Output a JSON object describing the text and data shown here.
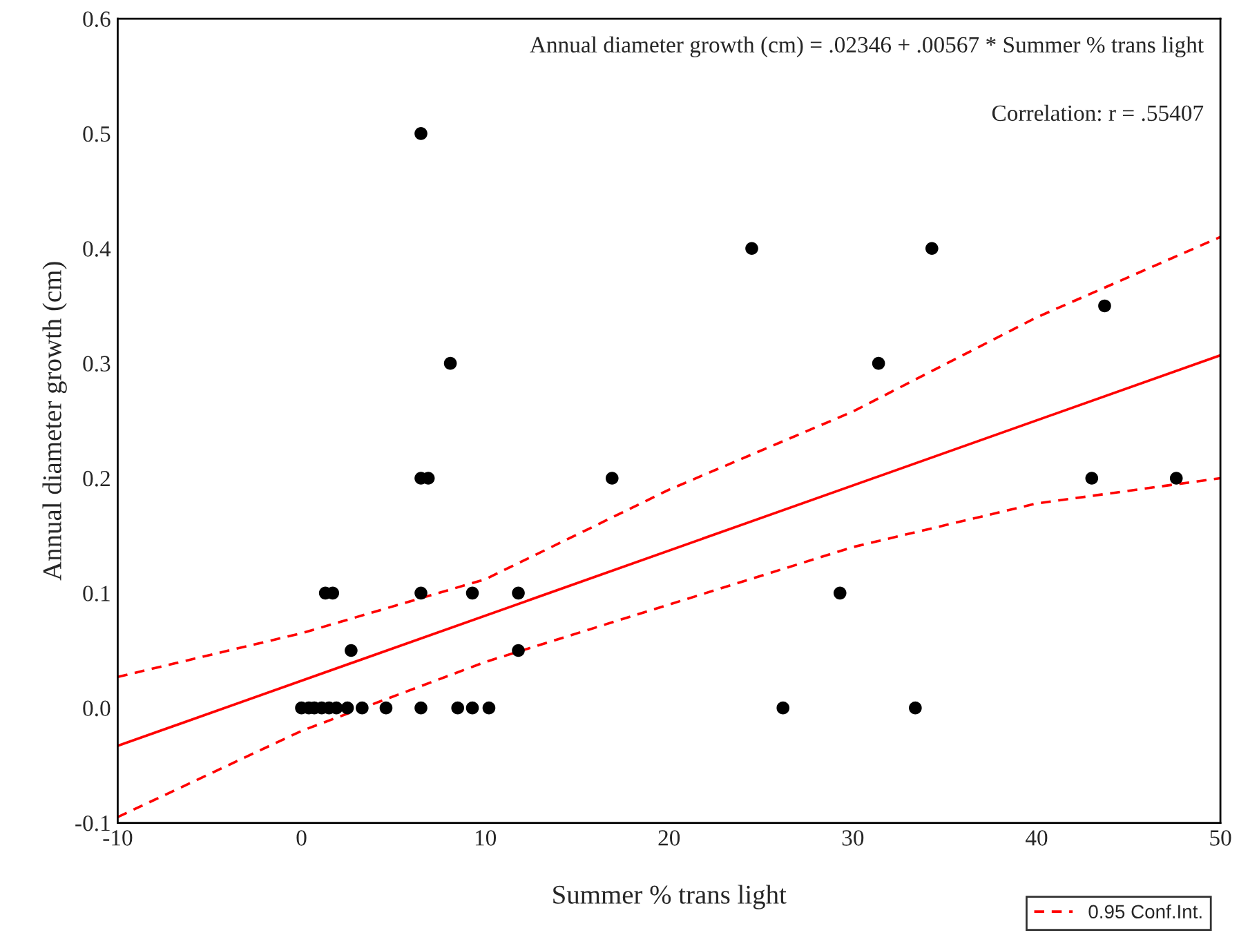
{
  "chart_data": {
    "type": "scatter",
    "xlabel": "Summer % trans light",
    "ylabel": "Annual diameter growth (cm)",
    "annotations": [
      "Annual diameter growth (cm) = .02346 + .00567 * Summer % trans light",
      "Correlation: r = .55407"
    ],
    "xlim": [
      -10,
      50
    ],
    "xticks": [
      -10,
      0,
      10,
      20,
      30,
      40,
      50
    ],
    "ylim": [
      -0.1,
      0.6
    ],
    "yticks": [
      {
        "value": -0.1,
        "label": "-0.1"
      },
      {
        "value": 0.0,
        "label": "0.0"
      },
      {
        "value": 0.1,
        "label": "0.1"
      },
      {
        "value": 0.2,
        "label": "0.2"
      },
      {
        "value": 0.3,
        "label": "0.3"
      },
      {
        "value": 0.4,
        "label": "0.4"
      },
      {
        "value": 0.5,
        "label": "0.5"
      },
      {
        "value": 0.6,
        "label": "0.6"
      }
    ],
    "grid": false,
    "legend": "bottom right",
    "series": [
      {
        "color": "#000000",
        "marker": "circle",
        "x": [
          0,
          0.4,
          0.7,
          1.1,
          1.5,
          1.9,
          2.5,
          3.3,
          4.6,
          6.5,
          8.5,
          9.3,
          10.2,
          26.2,
          33.4,
          2.7,
          11.8,
          1.3,
          1.7,
          6.5,
          9.3,
          11.8,
          29.3,
          6.5,
          6.9,
          16.9,
          43.0,
          47.6,
          8.1,
          31.4,
          43.7,
          24.5,
          34.3,
          6.5
        ],
        "values": [
          0,
          0,
          0,
          0,
          0,
          0,
          0,
          0,
          0,
          0,
          0,
          0,
          0,
          0,
          0,
          0.05,
          0.05,
          0.1,
          0.1,
          0.1,
          0.1,
          0.1,
          0.1,
          0.2,
          0.2,
          0.2,
          0.2,
          0.2,
          0.3,
          0.3,
          0.35,
          0.4,
          0.4,
          0.5
        ]
      },
      {
        "type": "line",
        "color": "#ff0000",
        "line_style": "solid",
        "x": [
          -10,
          50
        ],
        "values": [
          -0.033,
          0.307
        ]
      },
      {
        "type": "line",
        "name": "0.95 Conf.Int.",
        "color": "#ff0000",
        "line_style": "dashed",
        "x": [
          -10,
          0,
          10,
          20,
          30,
          40,
          50
        ],
        "values": [
          0.027,
          0.065,
          0.112,
          0.19,
          0.258,
          0.34,
          0.41
        ]
      },
      {
        "type": "line",
        "color": "#ff0000",
        "line_style": "dashed",
        "x": [
          -10,
          0,
          10,
          20,
          30,
          40,
          50
        ],
        "values": [
          -0.095,
          -0.02,
          0.04,
          0.09,
          0.14,
          0.178,
          0.2
        ]
      }
    ]
  }
}
